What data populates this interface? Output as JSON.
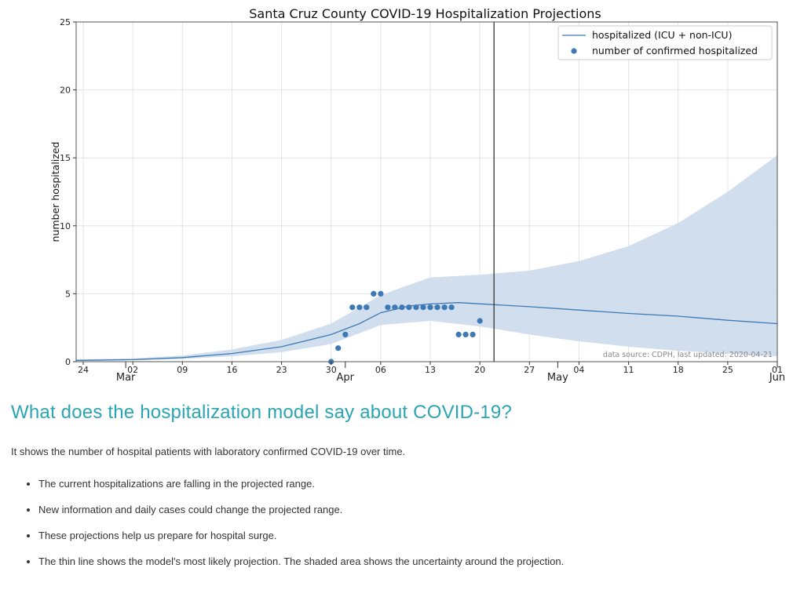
{
  "chart_data": {
    "type": "line",
    "title": "Santa Cruz County COVID-19 Hospitalization Projections",
    "xlabel": "",
    "ylabel": "number hospitalized",
    "ylim": [
      0,
      25
    ],
    "yticks": [
      0,
      5,
      10,
      15,
      20,
      25
    ],
    "xlim": [
      "2020-02-23",
      "2020-06-01"
    ],
    "x_day_ticks": [
      {
        "date": "2020-02-24",
        "label": "24"
      },
      {
        "date": "2020-03-02",
        "label": "02"
      },
      {
        "date": "2020-03-09",
        "label": "09"
      },
      {
        "date": "2020-03-16",
        "label": "16"
      },
      {
        "date": "2020-03-23",
        "label": "23"
      },
      {
        "date": "2020-03-30",
        "label": "30"
      },
      {
        "date": "2020-04-06",
        "label": "06"
      },
      {
        "date": "2020-04-13",
        "label": "13"
      },
      {
        "date": "2020-04-20",
        "label": "20"
      },
      {
        "date": "2020-04-27",
        "label": "27"
      },
      {
        "date": "2020-05-04",
        "label": "04"
      },
      {
        "date": "2020-05-11",
        "label": "11"
      },
      {
        "date": "2020-05-18",
        "label": "18"
      },
      {
        "date": "2020-05-25",
        "label": "25"
      },
      {
        "date": "2020-06-01",
        "label": "01"
      }
    ],
    "x_month_ticks": [
      {
        "date": "2020-03-01",
        "label": "Mar"
      },
      {
        "date": "2020-04-01",
        "label": "Apr"
      },
      {
        "date": "2020-05-01",
        "label": "May"
      },
      {
        "date": "2020-06-01",
        "label": "Jun"
      }
    ],
    "grid": true,
    "legend": "top-right",
    "vertical_line_date": "2020-04-22",
    "annotation": "data source: CDPH, last updated: 2020-04-21",
    "series": [
      {
        "name": "hospitalized (ICU + non-ICU)",
        "type": "line",
        "color": "#3d7ab5",
        "points": [
          [
            "2020-02-23",
            0.1
          ],
          [
            "2020-03-02",
            0.15
          ],
          [
            "2020-03-09",
            0.3
          ],
          [
            "2020-03-16",
            0.6
          ],
          [
            "2020-03-23",
            1.1
          ],
          [
            "2020-03-30",
            2.0
          ],
          [
            "2020-04-03",
            2.8
          ],
          [
            "2020-04-06",
            3.6
          ],
          [
            "2020-04-10",
            4.1
          ],
          [
            "2020-04-13",
            4.25
          ],
          [
            "2020-04-17",
            4.35
          ],
          [
            "2020-04-22",
            4.2
          ],
          [
            "2020-04-27",
            4.05
          ],
          [
            "2020-05-04",
            3.8
          ],
          [
            "2020-05-11",
            3.55
          ],
          [
            "2020-05-18",
            3.35
          ],
          [
            "2020-05-25",
            3.05
          ],
          [
            "2020-06-01",
            2.8
          ]
        ]
      },
      {
        "name": "uncertainty range",
        "type": "area",
        "color": "#cddcec",
        "upper": [
          [
            "2020-02-23",
            0.15
          ],
          [
            "2020-03-02",
            0.25
          ],
          [
            "2020-03-09",
            0.45
          ],
          [
            "2020-03-16",
            0.9
          ],
          [
            "2020-03-23",
            1.6
          ],
          [
            "2020-03-30",
            2.8
          ],
          [
            "2020-04-06",
            4.9
          ],
          [
            "2020-04-13",
            6.2
          ],
          [
            "2020-04-20",
            6.4
          ],
          [
            "2020-04-27",
            6.7
          ],
          [
            "2020-05-04",
            7.4
          ],
          [
            "2020-05-11",
            8.5
          ],
          [
            "2020-05-18",
            10.2
          ],
          [
            "2020-05-25",
            12.5
          ],
          [
            "2020-06-01",
            15.2
          ]
        ],
        "lower": [
          [
            "2020-02-23",
            0.05
          ],
          [
            "2020-03-02",
            0.1
          ],
          [
            "2020-03-09",
            0.2
          ],
          [
            "2020-03-16",
            0.4
          ],
          [
            "2020-03-23",
            0.7
          ],
          [
            "2020-03-30",
            1.3
          ],
          [
            "2020-04-06",
            2.7
          ],
          [
            "2020-04-13",
            3.0
          ],
          [
            "2020-04-20",
            2.6
          ],
          [
            "2020-04-27",
            2.0
          ],
          [
            "2020-05-04",
            1.5
          ],
          [
            "2020-05-11",
            1.1
          ],
          [
            "2020-05-18",
            0.8
          ],
          [
            "2020-05-25",
            0.6
          ],
          [
            "2020-06-01",
            0.4
          ]
        ]
      },
      {
        "name": "number of confirmed hospitalized",
        "type": "scatter",
        "color": "#3d7ab5",
        "points": [
          [
            "2020-03-30",
            0
          ],
          [
            "2020-03-31",
            1
          ],
          [
            "2020-04-01",
            2
          ],
          [
            "2020-04-02",
            4
          ],
          [
            "2020-04-03",
            4
          ],
          [
            "2020-04-04",
            4
          ],
          [
            "2020-04-05",
            5
          ],
          [
            "2020-04-06",
            5
          ],
          [
            "2020-04-07",
            4
          ],
          [
            "2020-04-08",
            4
          ],
          [
            "2020-04-09",
            4
          ],
          [
            "2020-04-10",
            4
          ],
          [
            "2020-04-11",
            4
          ],
          [
            "2020-04-12",
            4
          ],
          [
            "2020-04-13",
            4
          ],
          [
            "2020-04-14",
            4
          ],
          [
            "2020-04-15",
            4
          ],
          [
            "2020-04-16",
            4
          ],
          [
            "2020-04-17",
            2
          ],
          [
            "2020-04-18",
            2
          ],
          [
            "2020-04-19",
            2
          ],
          [
            "2020-04-20",
            3
          ]
        ]
      }
    ]
  },
  "article": {
    "heading": "What does the hospitalization model say about COVID-19?",
    "intro": "It shows the number of hospital patients with laboratory confirmed COVID-19 over time.",
    "bullets": [
      "The current hospitalizations are falling in the projected range.",
      "New information and daily cases could change the projected range.",
      "These projections help us prepare for hospital surge.",
      "The thin line shows the model's most likely projection. The shaded area shows the uncertainty around the projection."
    ]
  }
}
